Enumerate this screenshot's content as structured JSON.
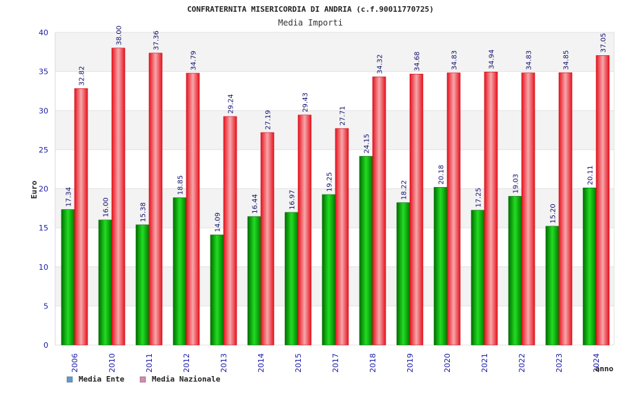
{
  "chart_data": {
    "type": "bar",
    "title": "CONFRATERNITA MISERICORDIA DI ANDRIA (c.f.90011770725)",
    "subtitle": "Media Importi",
    "xlabel": "anno",
    "ylabel": "Euro",
    "ylim": [
      0,
      40
    ],
    "yticks": [
      0,
      5,
      10,
      15,
      20,
      25,
      30,
      35,
      40
    ],
    "categories": [
      "2006",
      "2010",
      "2011",
      "2012",
      "2013",
      "2014",
      "2015",
      "2017",
      "2018",
      "2019",
      "2020",
      "2021",
      "2022",
      "2023",
      "2024"
    ],
    "series": [
      {
        "name": "Media Ente",
        "color": "#11aa11",
        "legend_color": "#5b9bd5",
        "values": [
          17.34,
          16.0,
          15.38,
          18.85,
          14.09,
          16.44,
          16.97,
          19.25,
          24.15,
          18.22,
          20.18,
          17.25,
          19.03,
          15.2,
          20.11
        ],
        "labels": [
          "17.34",
          "16.00",
          "15.38",
          "18.85",
          "14.09",
          "16.44",
          "16.97",
          "19.25",
          "24.15",
          "18.22",
          "20.18",
          "17.25",
          "19.03",
          "15.20",
          "20.11"
        ]
      },
      {
        "name": "Media Nazionale",
        "color": "#e8202a",
        "legend_color": "#d68ab0",
        "values": [
          32.82,
          38.0,
          37.36,
          34.79,
          29.24,
          27.19,
          29.43,
          27.71,
          34.32,
          34.68,
          34.83,
          34.94,
          34.83,
          34.85,
          37.05
        ],
        "labels": [
          "32.82",
          "38.00",
          "37.36",
          "34.79",
          "29.24",
          "27.19",
          "29.43",
          "27.71",
          "34.32",
          "34.68",
          "34.83",
          "34.94",
          "34.83",
          "34.85",
          "37.05"
        ]
      }
    ],
    "grid": true,
    "legend_placement": "bottom-left"
  }
}
